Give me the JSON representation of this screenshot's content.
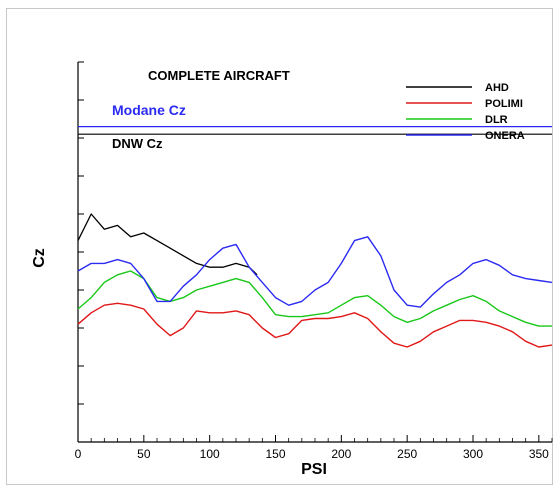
{
  "chart_data": {
    "type": "line",
    "title": "COMPLETE AIRCRAFT",
    "xlabel": "PSI",
    "ylabel": "Cz",
    "xlim": [
      0,
      360
    ],
    "x_ticks": [
      0,
      50,
      100,
      150,
      200,
      250,
      300,
      350
    ],
    "x_tick_labels": [
      "0",
      "50",
      "100",
      "150",
      "200",
      "250",
      "300",
      "350"
    ],
    "reference_lines": [
      {
        "label": "Modane Cz",
        "color": "#2b2bf2",
        "y_level": 0.83
      },
      {
        "label": "DNW Cz",
        "color": "#000000",
        "y_level": 0.81
      }
    ],
    "legend_position": "top-right",
    "series": [
      {
        "name": "AHD",
        "color": "#000000",
        "x": [
          0,
          10,
          20,
          30,
          40,
          50,
          60,
          70,
          80,
          90,
          100,
          110,
          120,
          130,
          136
        ],
        "y": [
          0.53,
          0.6,
          0.56,
          0.57,
          0.54,
          0.55,
          0.53,
          0.51,
          0.49,
          0.47,
          0.46,
          0.46,
          0.47,
          0.46,
          0.44
        ]
      },
      {
        "name": "POLIMI",
        "color": "#e01818",
        "x": [
          0,
          10,
          20,
          30,
          40,
          50,
          60,
          70,
          80,
          90,
          100,
          110,
          120,
          130,
          140,
          150,
          160,
          170,
          180,
          190,
          200,
          210,
          220,
          230,
          240,
          250,
          260,
          270,
          280,
          290,
          300,
          310,
          320,
          330,
          340,
          350,
          360
        ],
        "y": [
          0.31,
          0.34,
          0.36,
          0.365,
          0.36,
          0.35,
          0.31,
          0.28,
          0.3,
          0.345,
          0.34,
          0.34,
          0.345,
          0.335,
          0.3,
          0.275,
          0.285,
          0.32,
          0.325,
          0.325,
          0.33,
          0.34,
          0.325,
          0.29,
          0.26,
          0.25,
          0.265,
          0.29,
          0.305,
          0.32,
          0.32,
          0.315,
          0.305,
          0.29,
          0.265,
          0.25,
          0.255
        ]
      },
      {
        "name": "DLR",
        "color": "#19c819",
        "x": [
          0,
          10,
          20,
          30,
          40,
          50,
          60,
          70,
          80,
          90,
          100,
          110,
          120,
          130,
          140,
          150,
          160,
          170,
          180,
          190,
          200,
          210,
          220,
          230,
          240,
          250,
          260,
          270,
          280,
          290,
          300,
          310,
          320,
          330,
          340,
          350,
          360
        ],
        "y": [
          0.35,
          0.38,
          0.42,
          0.44,
          0.45,
          0.43,
          0.38,
          0.37,
          0.38,
          0.4,
          0.41,
          0.42,
          0.43,
          0.42,
          0.38,
          0.335,
          0.33,
          0.33,
          0.335,
          0.34,
          0.36,
          0.38,
          0.385,
          0.36,
          0.33,
          0.315,
          0.325,
          0.345,
          0.36,
          0.375,
          0.385,
          0.37,
          0.345,
          0.33,
          0.315,
          0.305,
          0.305
        ]
      },
      {
        "name": "ONERA",
        "color": "#2b2bf2",
        "x": [
          0,
          10,
          20,
          30,
          40,
          50,
          60,
          70,
          80,
          90,
          100,
          110,
          120,
          130,
          140,
          150,
          160,
          170,
          180,
          190,
          200,
          210,
          220,
          230,
          240,
          250,
          260,
          270,
          280,
          290,
          300,
          310,
          320,
          330,
          340,
          350,
          360
        ],
        "y": [
          0.45,
          0.47,
          0.47,
          0.48,
          0.47,
          0.43,
          0.37,
          0.37,
          0.41,
          0.44,
          0.48,
          0.51,
          0.52,
          0.46,
          0.42,
          0.38,
          0.36,
          0.37,
          0.4,
          0.42,
          0.47,
          0.53,
          0.54,
          0.49,
          0.4,
          0.36,
          0.355,
          0.39,
          0.42,
          0.44,
          0.47,
          0.48,
          0.465,
          0.44,
          0.43,
          0.425,
          0.42
        ]
      }
    ]
  }
}
